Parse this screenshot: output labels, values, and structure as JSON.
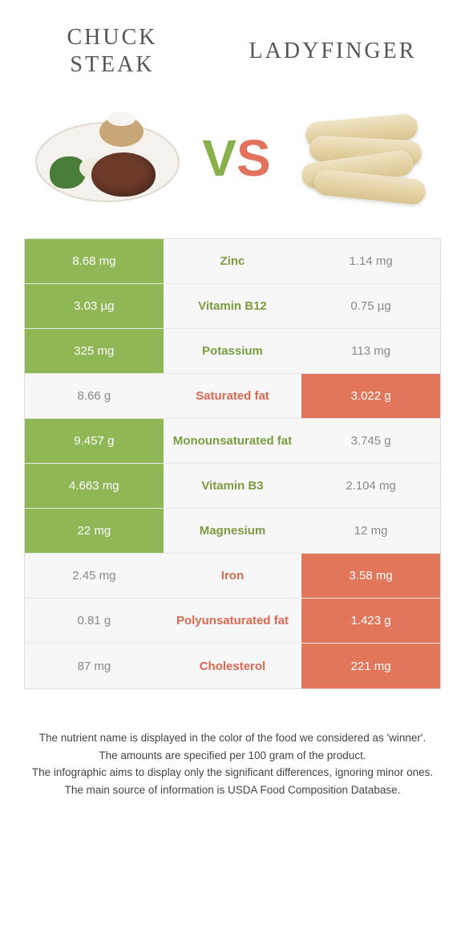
{
  "header": {
    "left_title_line1": "Chuck",
    "left_title_line2": "steak",
    "right_title": "Ladyfinger",
    "vs_v": "V",
    "vs_s": "S"
  },
  "colors": {
    "green": "#8fb756",
    "orange": "#e2765b",
    "grey": "#f7f7f7",
    "txt_green": "#7a9c3f",
    "txt_orange": "#d9684f"
  },
  "rows": [
    {
      "left": "8.68 mg",
      "mid": "Zinc",
      "right": "1.14 mg",
      "winner": "left"
    },
    {
      "left": "3.03 µg",
      "mid": "Vitamin B12",
      "right": "0.75 µg",
      "winner": "left"
    },
    {
      "left": "325 mg",
      "mid": "Potassium",
      "right": "113 mg",
      "winner": "left"
    },
    {
      "left": "8.66 g",
      "mid": "Saturated fat",
      "right": "3.022 g",
      "winner": "right"
    },
    {
      "left": "9.457 g",
      "mid": "Monounsaturated fat",
      "right": "3.745 g",
      "winner": "left"
    },
    {
      "left": "4.663 mg",
      "mid": "Vitamin B3",
      "right": "2.104 mg",
      "winner": "left"
    },
    {
      "left": "22 mg",
      "mid": "Magnesium",
      "right": "12 mg",
      "winner": "left"
    },
    {
      "left": "2.45 mg",
      "mid": "Iron",
      "right": "3.58 mg",
      "winner": "right"
    },
    {
      "left": "0.81 g",
      "mid": "Polyunsaturated fat",
      "right": "1.423 g",
      "winner": "right"
    },
    {
      "left": "87 mg",
      "mid": "Cholesterol",
      "right": "221 mg",
      "winner": "right"
    }
  ],
  "footer": {
    "line1": "The nutrient name is displayed in the color of the food we considered as 'winner'.",
    "line2": "The amounts are specified per 100 gram of the product.",
    "line3": "The infographic aims to display only the significant differences, ignoring minor ones.",
    "line4": "The main source of information is USDA Food Composition Database."
  }
}
